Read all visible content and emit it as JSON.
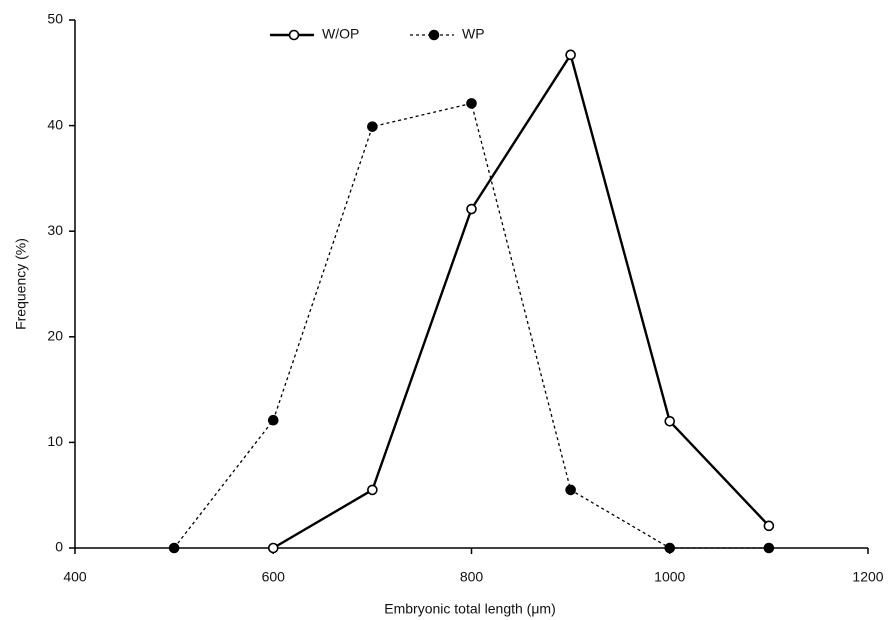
{
  "chart_data": {
    "type": "line",
    "x": [
      500,
      600,
      700,
      800,
      900,
      1000,
      1100
    ],
    "series": [
      {
        "name": "W/OP",
        "color": "#000000",
        "line_style": "solid",
        "marker_fill": "#ffffff",
        "values": [
          null,
          0,
          5.5,
          32.1,
          46.7,
          12,
          2.1
        ]
      },
      {
        "name": "WP",
        "color": "#000000",
        "line_style": "dotted",
        "marker_fill": "#000000",
        "values": [
          0,
          12.1,
          39.9,
          42.1,
          5.5,
          0,
          0
        ]
      }
    ],
    "xlabel": "Embryonic total length (μm)",
    "ylabel": "Frequency (%)",
    "xlim": [
      400,
      1200
    ],
    "xticks": [
      400,
      600,
      800,
      1000,
      1200
    ],
    "ylim": [
      0,
      50
    ],
    "yticks": [
      0,
      10,
      20,
      30,
      40,
      50
    ],
    "grid": false,
    "legend": "top"
  }
}
